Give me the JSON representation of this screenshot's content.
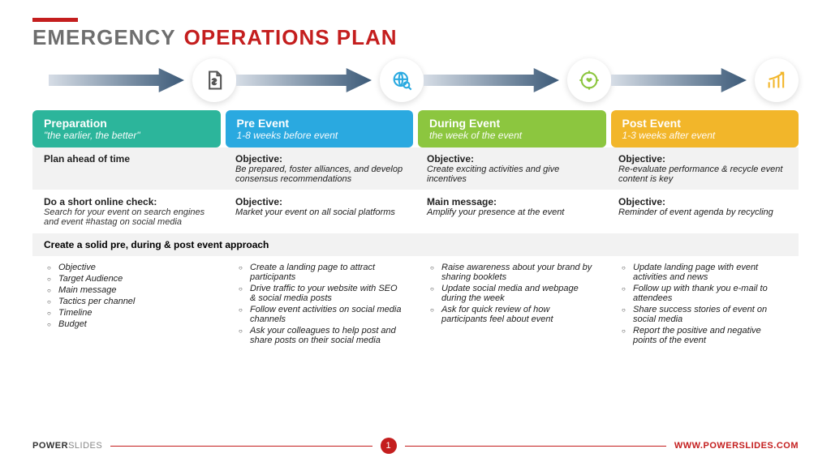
{
  "title": {
    "word1": "EMERGENCY",
    "word2": "OPERATIONS PLAN"
  },
  "colors": {
    "accent_red": "#c41e1e",
    "title_grey": "#6e6e6e",
    "stage1": "#2cb59b",
    "stage2": "#2aa9e0",
    "stage3": "#8cc63f",
    "stage4": "#f2b62a",
    "arrow_start": "#d6dde6",
    "arrow_end": "#3c5a78",
    "row_grey": "#f2f2f2",
    "icon1": "#555555",
    "icon2": "#2aa9e0",
    "icon3": "#8cc63f",
    "icon4": "#f2b62a"
  },
  "stages": [
    {
      "title": "Preparation",
      "sub": "\"the earlier, the better\""
    },
    {
      "title": "Pre Event",
      "sub": "1-8 weeks before event"
    },
    {
      "title": "During Event",
      "sub": "the week of the event"
    },
    {
      "title": "Post Event",
      "sub": "1-3 weeks after event"
    }
  ],
  "rows": {
    "r1": {
      "c0_title": "Plan ahead of time",
      "c1_title": "Objective:",
      "c1_body": "Be prepared, foster alliances, and develop consensus recommendations",
      "c2_title": "Objective:",
      "c2_body": "Create exciting activities and give incentives",
      "c3_title": "Objective:",
      "c3_body": "Re-evaluate performance & recycle event content is key"
    },
    "r2": {
      "c0_title": "Do a short online check:",
      "c0_body": "Search for your event on search engines and event #hastag on social media",
      "c1_title": "Objective:",
      "c1_body": "Market your event on all social platforms",
      "c2_title": "Main message:",
      "c2_body": "Amplify your presence at the event",
      "c3_title": "Objective:",
      "c3_body": "Reminder of event agenda by recycling"
    },
    "r3_span": "Create a solid pre, during & post event approach"
  },
  "bullets": {
    "c0": [
      "Objective",
      "Target Audience",
      "Main message",
      "Tactics per channel",
      "Timeline",
      "Budget"
    ],
    "c1": [
      "Create a landing page to attract participants",
      "Drive traffic to your website with SEO & social media posts",
      "Follow event activities on social media channels",
      "Ask your colleagues to help post and share posts on their social media"
    ],
    "c2": [
      "Raise awareness about your brand by sharing booklets",
      "Update social media and webpage during the week",
      "Ask for quick review of how participants feel about event"
    ],
    "c3": [
      "Update landing page with event activities and news",
      "Follow up with thank you e-mail to attendees",
      "Share success stories of event on social media",
      "Report the positive and negative points of the event"
    ]
  },
  "footer": {
    "brand1": "POWER",
    "brand2": "SLIDES",
    "page": "1",
    "url": "WWW.POWERSLIDES.COM"
  }
}
